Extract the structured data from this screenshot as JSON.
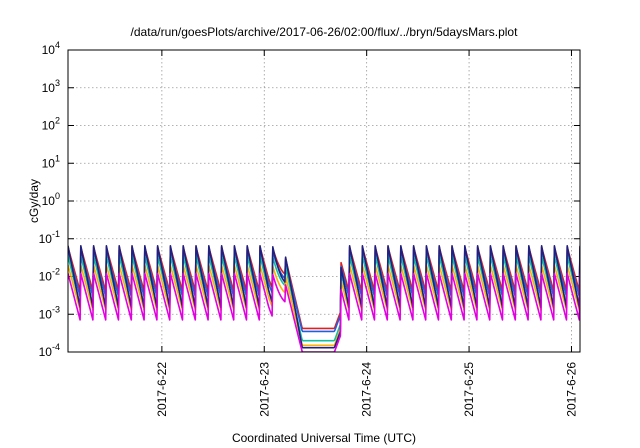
{
  "chart_data": {
    "type": "line",
    "title": "/data/run/goesPlots/archive/2017-06-26/02:00/flux/../bryn/5daysMars.plot",
    "xlabel": "Coordinated Universal Time (UTC)",
    "ylabel": "cGy/day",
    "y_scale": "log",
    "ylim": [
      0.0001,
      10000
    ],
    "xlim": [
      "2017-06-21T02:00",
      "2017-06-26T02:00"
    ],
    "grid": true,
    "legend": "none",
    "x_ticks": [
      "2017-6-22",
      "2017-6-23",
      "2017-6-24",
      "2017-6-25",
      "2017-6-26"
    ],
    "y_ticks": [
      {
        "base": "10",
        "exp": "-4"
      },
      {
        "base": "10",
        "exp": "-3"
      },
      {
        "base": "10",
        "exp": "-2"
      },
      {
        "base": "10",
        "exp": "-1"
      },
      {
        "base": "10",
        "exp": "0"
      },
      {
        "base": "10",
        "exp": "1"
      },
      {
        "base": "10",
        "exp": "2"
      },
      {
        "base": "10",
        "exp": "3"
      },
      {
        "base": "10",
        "exp": "4"
      }
    ],
    "sawtooth_period_hours": 3,
    "depression": {
      "start": "2017-06-23T05:00",
      "end": "2017-06-23T18:00"
    },
    "series": [
      {
        "color": "#e02020",
        "peak": 0.06,
        "trough": 0.0035,
        "depression_floor": 0.00042
      },
      {
        "color": "#2060e0",
        "peak": 0.05,
        "trough": 0.0025,
        "depression_floor": 0.00035
      },
      {
        "color": "#10c0a0",
        "peak": 0.035,
        "trough": 0.0015,
        "depression_floor": 0.0002
      },
      {
        "color": "#ffb000",
        "peak": 0.02,
        "trough": 0.0011,
        "depression_floor": 0.00015
      },
      {
        "color": "#202080",
        "peak": 0.065,
        "trough": 0.0012,
        "depression_floor": 0.00013
      },
      {
        "color": "#e000e0",
        "peak": 0.012,
        "trough": 0.0006,
        "depression_floor": 0.0001
      }
    ]
  }
}
